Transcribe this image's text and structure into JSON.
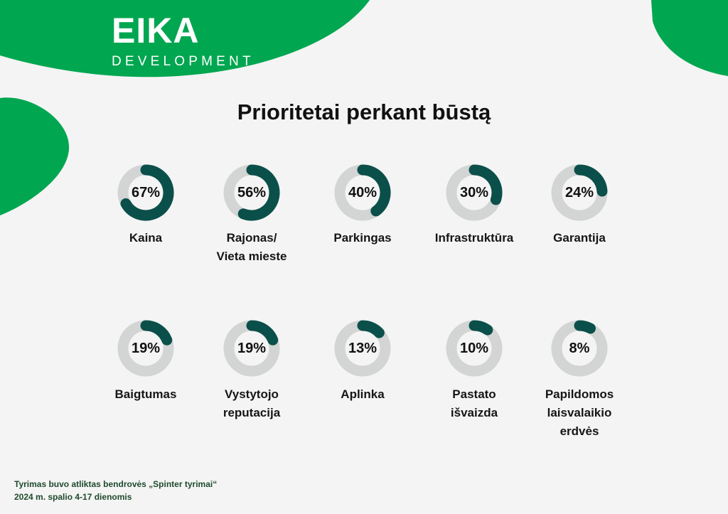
{
  "brand": {
    "logo_main": "EIKA",
    "logo_sub": "DEVELOPMENT",
    "colors": {
      "green": "#00a650",
      "ring_fill": "#0b4f4a",
      "ring_track": "#d3d4d4"
    }
  },
  "chart_data": {
    "type": "donut",
    "title": "Prioritetai perkant būstą",
    "unit": "%",
    "items": [
      {
        "label": "Kaina",
        "value": 67,
        "display": "67%"
      },
      {
        "label": "Rajonas/\nVieta mieste",
        "value": 56,
        "display": "56%"
      },
      {
        "label": "Parkingas",
        "value": 40,
        "display": "40%"
      },
      {
        "label": "Infrastruktūra",
        "value": 30,
        "display": "30%"
      },
      {
        "label": "Garantija",
        "value": 24,
        "display": "24%"
      },
      {
        "label": "Baigtumas",
        "value": 19,
        "display": "19%"
      },
      {
        "label": "Vystytojo\nreputacija",
        "value": 19,
        "display": "19%"
      },
      {
        "label": "Aplinka",
        "value": 13,
        "display": "13%"
      },
      {
        "label": "Pastato\nišvaizda",
        "value": 10,
        "display": "10%"
      },
      {
        "label": "Papildomos\nlaisvalaikio\nerdvės",
        "value": 8,
        "display": "8%"
      }
    ]
  },
  "footer": {
    "line1": "Tyrimas buvo atliktas bendrovės „Spinter tyrimai“",
    "line2": "2024 m. spalio 4-17 dienomis"
  }
}
